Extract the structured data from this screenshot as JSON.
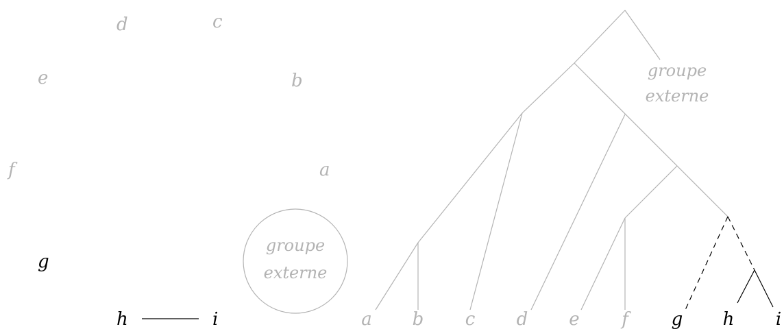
{
  "colors": {
    "faded": "#b3b3b3",
    "active": "#000000"
  },
  "left_panel": {
    "nodes": {
      "a": "a",
      "b": "b",
      "c": "c",
      "d": "d",
      "e": "e",
      "f": "f",
      "g": "g",
      "h": "h",
      "i": "i"
    },
    "outgroup_line1": "groupe",
    "outgroup_line2": "externe"
  },
  "right_panel": {
    "leaves": [
      "a",
      "b",
      "c",
      "d",
      "e",
      "f",
      "g",
      "h",
      "i"
    ],
    "outgroup_line1": "groupe",
    "outgroup_line2": "externe"
  }
}
